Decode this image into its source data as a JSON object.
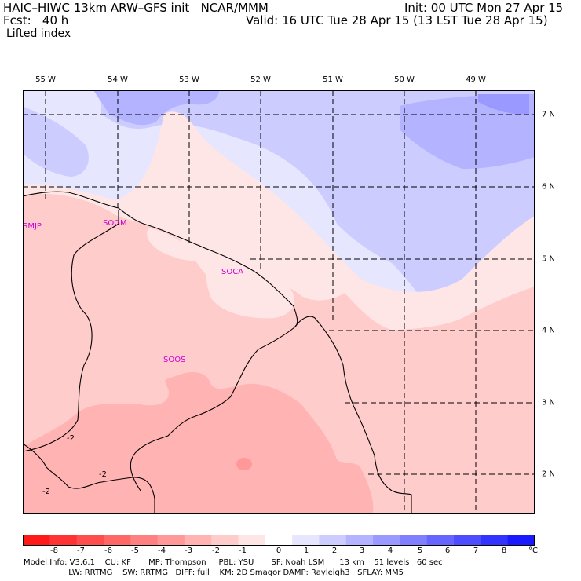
{
  "header": {
    "model_line": "HAIC–HIWC 13km ARW–GFS init   NCAR/MMM",
    "init_line": "Init: 00 UTC Mon 27 Apr 15",
    "fcst_line": "Fcst:   40 h",
    "valid_line": "Valid: 16 UTC Tue 28 Apr 15 (13 LST Tue 28 Apr 15)",
    "field": "Lifted index"
  },
  "map": {
    "lon_labels": [
      "55 W",
      "54 W",
      "53 W",
      "52 W",
      "51 W",
      "50 W",
      "49 W"
    ],
    "lat_labels": [
      "7 N",
      "6 N",
      "5 N",
      "4 N",
      "3 N",
      "2 N"
    ],
    "stations": [
      "SMJP",
      "SOGM",
      "SOCA",
      "SOOS"
    ],
    "contour_labels": [
      "-2",
      "-2",
      "-2"
    ]
  },
  "colorbar": {
    "ticks": [
      "-8",
      "-7",
      "-6",
      "-5",
      "-4",
      "-3",
      "-2",
      "-1",
      "0",
      "1",
      "2",
      "3",
      "4",
      "5",
      "6",
      "7",
      "8"
    ],
    "unit": "°C",
    "colors": [
      "#ff1a1a",
      "#ff3333",
      "#ff4d4d",
      "#ff6666",
      "#ff8080",
      "#ff9999",
      "#ffb3b3",
      "#ffcccc",
      "#ffe6e6",
      "#ffffff",
      "#e6e6ff",
      "#ccccff",
      "#b3b3ff",
      "#9999ff",
      "#8080ff",
      "#6666ff",
      "#4d4dff",
      "#3333ff",
      "#1a1aff"
    ]
  },
  "footer": {
    "line1": "Model Info: V3.6.1    CU: KF       MP: Thompson     PBL: YSU       SF: Noah LSM      13 km    51 levels   60 sec",
    "line2": "                  LW: RRTMG    SW: RRTMG   DIFF: full    KM: 2D Smagor DAMP: Rayleigh3   SFLAY: MM5"
  }
}
